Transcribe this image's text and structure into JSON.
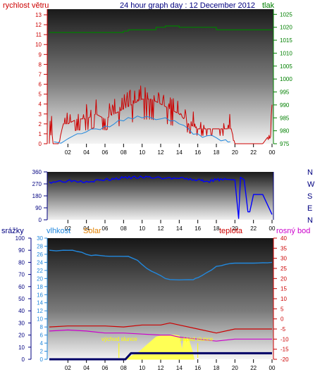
{
  "colors": {
    "red": "#cc0000",
    "green": "#008000",
    "navy": "#000080",
    "blue": "#0000ff",
    "steel": "#2288dd",
    "orange": "#e08000",
    "magenta": "#cc00cc",
    "yellow": "#ffff55",
    "label_yellow": "#ffff00",
    "dark_blue": "#000066"
  },
  "header": {
    "wind_label": "rychlost větru",
    "title": "24 hour graph day : 12 December 2012",
    "pressure_label": "tlak"
  },
  "bottom_header": {
    "rain_label": "srážky",
    "humidity_label": "vlhkost",
    "solar_label": "Solar",
    "temp_label": "teplota",
    "dew_label": "rosný bod"
  },
  "annotations": {
    "sunrise": "východ slunce",
    "sunset": "západ slunce"
  },
  "chart_data": [
    {
      "type": "line",
      "panel": "wind-and-pressure",
      "x_ticks": [
        "02",
        "04",
        "06",
        "08",
        "10",
        "12",
        "14",
        "16",
        "18",
        "20",
        "22",
        "00"
      ],
      "y_left": {
        "label": "rychlost větru",
        "ticks": [
          0,
          1,
          2,
          3,
          4,
          5,
          6,
          7,
          8,
          9,
          10,
          11,
          12,
          13
        ],
        "ylim": [
          0,
          13
        ]
      },
      "y_right": {
        "label": "tlak",
        "ticks": [
          975,
          980,
          985,
          990,
          995,
          1000,
          1005,
          1010,
          1015,
          1020,
          1025
        ],
        "ylim": [
          975,
          1027
        ]
      },
      "series": [
        {
          "axis": "right",
          "color": "green",
          "type": "step",
          "x": [
            0,
            8,
            8.5,
            11.5,
            12.5,
            14,
            17,
            18,
            24
          ],
          "y": [
            1018,
            1018.5,
            1019,
            1020,
            1020.5,
            1020,
            1020,
            1019,
            1019
          ]
        },
        {
          "axis": "left",
          "color": "red",
          "type": "gust",
          "x": [
            0,
            0.2,
            0.4,
            1,
            1.5,
            2,
            3,
            4,
            5,
            6,
            7,
            8,
            9,
            10,
            11,
            12,
            13,
            14,
            14.5,
            15,
            16,
            17,
            18,
            19,
            19.6,
            20,
            22,
            23,
            23.8,
            24
          ],
          "y": [
            0,
            2,
            0,
            0,
            2,
            2,
            2.5,
            2.5,
            3,
            2.5,
            3,
            3.5,
            4,
            4.5,
            4.5,
            4,
            3.5,
            3,
            2.5,
            2,
            1.5,
            1.5,
            1.5,
            1.5,
            1.5,
            0,
            0,
            0,
            1,
            2.5
          ]
        },
        {
          "axis": "left",
          "color": "steel",
          "type": "average",
          "x": [
            0.5,
            2,
            3,
            4,
            5,
            6,
            7,
            8,
            9,
            10,
            11,
            12,
            13,
            14,
            15,
            16,
            17,
            18,
            19,
            19.5
          ],
          "y": [
            0.2,
            0.5,
            1,
            1.2,
            1.5,
            1.8,
            2,
            2.3,
            2.5,
            2.6,
            2.6,
            2.5,
            2.3,
            2,
            1.5,
            1,
            0.8,
            0.6,
            0.4,
            0.2
          ]
        }
      ]
    },
    {
      "type": "line",
      "panel": "wind-direction",
      "x_ticks": [
        "02",
        "04",
        "06",
        "08",
        "10",
        "12",
        "14",
        "16",
        "18",
        "20",
        "22",
        "00"
      ],
      "y_left": {
        "ticks": [
          0,
          90,
          180,
          270,
          360
        ],
        "ylim": [
          0,
          360
        ]
      },
      "y_right": {
        "ticks": [
          "N",
          "W",
          "S",
          "E",
          "N"
        ]
      },
      "series": [
        {
          "color": "blue",
          "x": [
            0,
            2,
            4,
            6,
            8,
            10,
            12,
            14,
            16,
            17,
            18,
            19,
            20,
            20.4,
            20.6,
            21,
            21.4,
            21.6,
            22,
            22.5,
            23,
            24
          ],
          "y": [
            285,
            295,
            290,
            300,
            315,
            320,
            315,
            310,
            300,
            290,
            300,
            305,
            300,
            10,
            320,
            300,
            60,
            60,
            190,
            190,
            190,
            40
          ]
        }
      ]
    },
    {
      "type": "line",
      "panel": "humidity-temperature-solar",
      "x_ticks": [
        "02",
        "04",
        "06",
        "08",
        "10",
        "12",
        "14",
        "16",
        "18",
        "20",
        "22",
        "00"
      ],
      "y_rain": {
        "label": "srážky",
        "ticks": [
          0,
          10,
          20,
          30,
          40,
          50,
          60,
          70,
          80,
          90,
          100
        ],
        "ylim": [
          0,
          100
        ]
      },
      "y_humidity": {
        "label": "vlhkost",
        "ticks": [
          0,
          2,
          4,
          6,
          8,
          10,
          12,
          14,
          16,
          18,
          20,
          22,
          24,
          26,
          28,
          30
        ],
        "ylim": [
          0,
          30
        ]
      },
      "y_temp": {
        "label": "teplota",
        "ticks": [
          -20,
          -15,
          -10,
          -5,
          0,
          5,
          10,
          15,
          20,
          25,
          30,
          35,
          40
        ],
        "ylim": [
          -20,
          40
        ]
      },
      "series": [
        {
          "name": "vlhkost",
          "color": "steel",
          "axis": "humidity",
          "x": [
            0,
            1.5,
            2.5,
            3.5,
            4.5,
            5.5,
            6.5,
            7.5,
            8.5,
            9.5,
            10.5,
            11.5,
            12.5,
            13.5,
            14.5,
            15.5,
            16,
            17,
            18,
            19,
            20,
            21,
            22,
            23,
            24
          ],
          "y": [
            27,
            27,
            27,
            26.5,
            25.7,
            25.7,
            25.5,
            25.5,
            25.5,
            24.5,
            22.5,
            21.3,
            20,
            19.7,
            19.7,
            19.7,
            20.2,
            21.5,
            23,
            23.5,
            23.8,
            23.8,
            23.8,
            23.9,
            24
          ]
        },
        {
          "name": "teplota",
          "color": "red",
          "axis": "temp",
          "x": [
            0,
            2,
            4,
            6,
            8,
            10,
            12,
            13,
            14,
            16,
            18,
            20,
            22,
            24
          ],
          "y": [
            -4,
            -3.5,
            -3.5,
            -3.5,
            -4,
            -3,
            -3,
            -2,
            -3,
            -5,
            -7,
            -5,
            -5,
            -5
          ]
        },
        {
          "name": "rosný bod",
          "color": "magenta",
          "axis": "temp",
          "x": [
            0,
            2,
            4,
            6,
            8,
            10,
            12,
            13,
            14,
            16,
            18,
            20,
            22,
            24
          ],
          "y": [
            -6,
            -5.5,
            -6,
            -7,
            -7,
            -7.5,
            -8,
            -8,
            -9,
            -10,
            -11,
            -10,
            -10,
            -10
          ]
        },
        {
          "name": "Solar",
          "color": "yellow",
          "axis": "humidity",
          "type": "area",
          "x": [
            8.1,
            8.5,
            9,
            9.5,
            10,
            10.5,
            11,
            11.5,
            12,
            12.5,
            13,
            13.5,
            14,
            14.3,
            14.5,
            15,
            15.4,
            15.6
          ],
          "y": [
            0,
            0.4,
            1,
            1.5,
            2.5,
            3.5,
            4.5,
            5.5,
            5.8,
            6,
            6,
            6,
            5.8,
            2,
            5,
            5,
            2,
            0
          ]
        },
        {
          "name": "srážky",
          "color": "dark_blue",
          "axis": "rain",
          "x": [
            0,
            8.2,
            8.8,
            24
          ],
          "y": [
            0,
            0,
            5,
            5
          ]
        }
      ],
      "sunrise_x": 7.5,
      "sunset_x": 16
    }
  ]
}
